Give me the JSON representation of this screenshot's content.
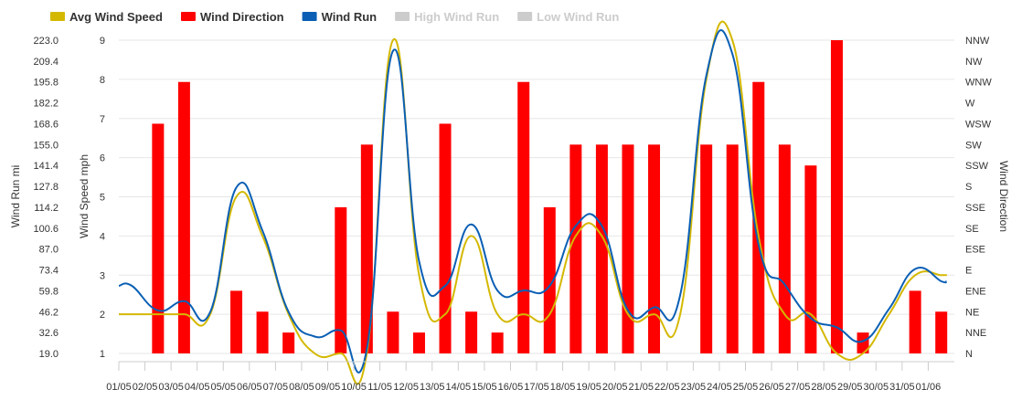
{
  "chart_data": {
    "type": "combo",
    "title": "",
    "legend": {
      "placement": "top-left",
      "items": [
        {
          "label": "Avg Wind Speed",
          "color": "#d4b800",
          "visible": true
        },
        {
          "label": "Wind Direction",
          "color": "#ff0000",
          "visible": true
        },
        {
          "label": "Wind Run",
          "color": "#0a5fb4",
          "visible": true
        },
        {
          "label": "High Wind Run",
          "color": "#cccccc",
          "visible": false
        },
        {
          "label": "Low Wind Run",
          "color": "#cccccc",
          "visible": false
        }
      ]
    },
    "categories": [
      "01/05",
      "02/05",
      "03/05",
      "04/05",
      "05/05",
      "06/05",
      "07/05",
      "08/05",
      "09/05",
      "10/05",
      "11/05",
      "12/05",
      "13/05",
      "14/05",
      "15/05",
      "16/05",
      "17/05",
      "18/05",
      "19/05",
      "20/05",
      "21/05",
      "22/05",
      "23/05",
      "24/05",
      "25/05",
      "26/05",
      "27/05",
      "28/05",
      "29/05",
      "30/05",
      "31/05",
      "01/06"
    ],
    "axes": {
      "wind_run": {
        "title": "Wind Run mi",
        "min": 19.0,
        "max": 223.0,
        "ticks": [
          "19.0",
          "32.6",
          "46.2",
          "59.8",
          "73.4",
          "87.0",
          "100.6",
          "114.2",
          "127.8",
          "141.4",
          "155.0",
          "168.6",
          "182.2",
          "195.8",
          "209.4",
          "223.0"
        ]
      },
      "wind_speed": {
        "title": "Wind Speed mph",
        "min": 1,
        "max": 9,
        "ticks": [
          "1",
          "2",
          "3",
          "4",
          "5",
          "6",
          "7",
          "8",
          "9"
        ]
      },
      "wind_direction": {
        "title": "Wind Direction",
        "ticks": [
          "N",
          "NNE",
          "NE",
          "ENE",
          "E",
          "ESE",
          "SE",
          "SSE",
          "S",
          "SSW",
          "SW",
          "WSW",
          "W",
          "WNW",
          "NW",
          "NNW"
        ]
      }
    },
    "grid": true,
    "series": [
      {
        "name": "Avg Wind Speed",
        "type": "spline",
        "axis": "wind_speed",
        "color": "#d4b800",
        "values": [
          2,
          2,
          2,
          2,
          5,
          4,
          2,
          1,
          1,
          1,
          9,
          3,
          2,
          4,
          2,
          2,
          2,
          4,
          4,
          2,
          2,
          2,
          8,
          9,
          4,
          2,
          2,
          1,
          1,
          2,
          3,
          3
        ]
      },
      {
        "name": "Wind Direction",
        "type": "column",
        "axis": "wind_direction",
        "color": "#ff0000",
        "values": [
          "N",
          "WSW",
          "WNW",
          "N",
          "ENE",
          "NE",
          "NNE",
          "N",
          "SSE",
          "SW",
          "NE",
          "NNE",
          "WSW",
          "NE",
          "NNE",
          "WNW",
          "SSE",
          "SW",
          "SW",
          "SW",
          "SW",
          "N",
          "SW",
          "SW",
          "WNW",
          "SW",
          "SSW",
          "NNW",
          "NNE",
          "N",
          "ENE",
          "NE"
        ]
      },
      {
        "name": "Wind Run",
        "type": "spline",
        "axis": "wind_run",
        "color": "#0a5fb4",
        "values": [
          63,
          47,
          53,
          46,
          127,
          99,
          46,
          30,
          34,
          22,
          216,
          79,
          63,
          103,
          60,
          60,
          63,
          102,
          102,
          47,
          49,
          57,
          200,
          214,
          90,
          64,
          42,
          36,
          27,
          48,
          74,
          66
        ]
      }
    ]
  }
}
